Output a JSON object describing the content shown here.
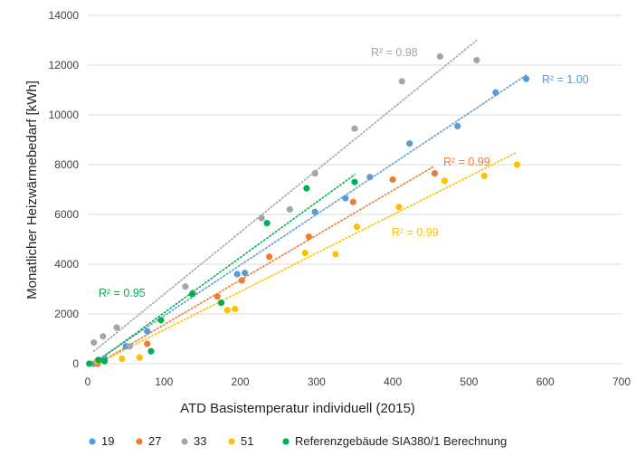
{
  "chart_data": {
    "type": "scatter",
    "xlabel": "ATD Basistemperatur individuell (2015)",
    "ylabel": "Monatlicher Heizwärmebedarf [kWh]",
    "xlim": [
      0,
      700
    ],
    "ylim": [
      0,
      14000
    ],
    "x_ticks": [
      "0",
      "100",
      "200",
      "300",
      "400",
      "500",
      "600",
      "700"
    ],
    "y_ticks": [
      "0",
      "2000",
      "4000",
      "6000",
      "8000",
      "10000",
      "12000",
      "14000"
    ],
    "grid": "horizontal",
    "legend_position": "bottom",
    "series": [
      {
        "name": "19",
        "color": "#5b9bd5",
        "points": [
          [
            8,
            0
          ],
          [
            22,
            200
          ],
          [
            50,
            700
          ],
          [
            78,
            1300
          ],
          [
            196,
            3600
          ],
          [
            206,
            3650
          ],
          [
            298,
            6100
          ],
          [
            338,
            6650
          ],
          [
            370,
            7500
          ],
          [
            422,
            8850
          ],
          [
            485,
            9550
          ],
          [
            535,
            10900
          ],
          [
            575,
            11450
          ]
        ],
        "trendline": {
          "x": [
            8,
            575
          ],
          "y": [
            50,
            11600
          ]
        },
        "r2_label": "R² = 1.00"
      },
      {
        "name": "27",
        "color": "#ed7d31",
        "points": [
          [
            13,
            0
          ],
          [
            78,
            800
          ],
          [
            170,
            2700
          ],
          [
            202,
            3350
          ],
          [
            238,
            4300
          ],
          [
            290,
            5100
          ],
          [
            348,
            6500
          ],
          [
            400,
            7400
          ],
          [
            455,
            7650
          ]
        ],
        "trendline": {
          "x": [
            13,
            455
          ],
          "y": [
            0,
            7950
          ]
        },
        "r2_label": "R² = 0.99"
      },
      {
        "name": "33",
        "color": "#a5a5a5",
        "points": [
          [
            8,
            850
          ],
          [
            20,
            1100
          ],
          [
            38,
            1450
          ],
          [
            55,
            700
          ],
          [
            128,
            3100
          ],
          [
            138,
            2850
          ],
          [
            228,
            5850
          ],
          [
            265,
            6200
          ],
          [
            298,
            7650
          ],
          [
            350,
            9450
          ],
          [
            412,
            11350
          ],
          [
            462,
            12350
          ],
          [
            510,
            12200
          ]
        ],
        "trendline": {
          "x": [
            8,
            510
          ],
          "y": [
            500,
            13000
          ]
        },
        "r2_label": "R² = 0.98"
      },
      {
        "name": "51",
        "color": "#ffc000",
        "points": [
          [
            12,
            100
          ],
          [
            45,
            200
          ],
          [
            68,
            250
          ],
          [
            183,
            2150
          ],
          [
            193,
            2200
          ],
          [
            285,
            4450
          ],
          [
            325,
            4400
          ],
          [
            353,
            5500
          ],
          [
            408,
            6300
          ],
          [
            468,
            7350
          ],
          [
            520,
            7550
          ],
          [
            563,
            8000
          ]
        ],
        "trendline": {
          "x": [
            12,
            563
          ],
          "y": [
            0,
            8500
          ]
        },
        "r2_label": "R² = 0.99"
      },
      {
        "name": "Referenzgebäude SIA380/1 Berechnung",
        "color": "#00b050",
        "points": [
          [
            2,
            0
          ],
          [
            14,
            150
          ],
          [
            22,
            100
          ],
          [
            83,
            500
          ],
          [
            96,
            1750
          ],
          [
            137,
            2800
          ],
          [
            175,
            2450
          ],
          [
            235,
            5650
          ],
          [
            287,
            7050
          ],
          [
            350,
            7300
          ]
        ],
        "trendline": {
          "x": [
            8,
            350
          ],
          "y": [
            0,
            7600
          ]
        },
        "r2_label": "R² = 0.95"
      }
    ]
  }
}
